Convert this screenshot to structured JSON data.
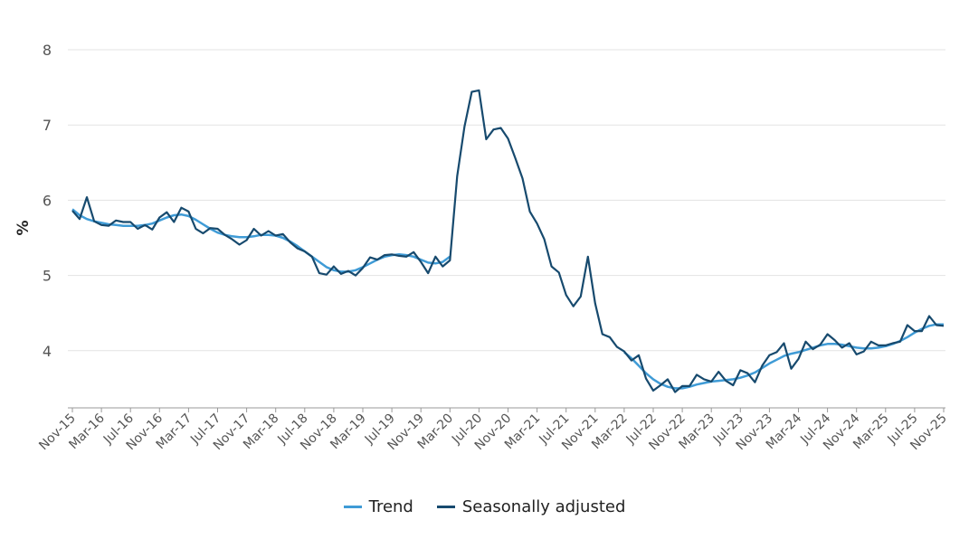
{
  "chart_data": {
    "type": "line",
    "title": "",
    "xlabel": "",
    "ylabel": "%",
    "x_frequency": "monthly",
    "x_start": "Nov-15",
    "x_end": "Nov-25",
    "x_tick_labels": [
      "Nov-15",
      "Mar-16",
      "Jul-16",
      "Nov-16",
      "Mar-17",
      "Jul-17",
      "Nov-17",
      "Mar-18",
      "Jul-18",
      "Nov-18",
      "Mar-19",
      "Jul-19",
      "Nov-19",
      "Mar-20",
      "Jul-20",
      "Nov-20",
      "Mar-21",
      "Jul-21",
      "Nov-21",
      "Mar-22",
      "Jul-22",
      "Nov-22",
      "Mar-23",
      "Jul-23",
      "Nov-23",
      "Mar-24",
      "Jul-24",
      "Nov-24",
      "Mar-25",
      "Jul-25",
      "Nov-25"
    ],
    "y_ticks": [
      4,
      5,
      6,
      7,
      8
    ],
    "ylim": [
      3.24,
      8
    ],
    "grid": "horizontal",
    "legend_position": "bottom",
    "series": [
      {
        "name": "Trend",
        "color": "#3f9bd6",
        "values": [
          5.88,
          5.8,
          5.75,
          5.72,
          5.7,
          5.68,
          5.67,
          5.66,
          5.66,
          5.66,
          5.67,
          5.69,
          5.73,
          5.77,
          5.8,
          5.81,
          5.79,
          5.74,
          5.68,
          5.62,
          5.57,
          5.54,
          5.52,
          5.51,
          5.51,
          5.52,
          5.54,
          5.54,
          5.53,
          5.5,
          5.45,
          5.39,
          5.32,
          5.25,
          5.18,
          5.11,
          5.07,
          5.05,
          5.05,
          5.07,
          5.11,
          5.16,
          5.21,
          5.25,
          5.27,
          5.28,
          5.27,
          5.25,
          5.21,
          5.17,
          5.16,
          5.18,
          5.25,
          null,
          null,
          null,
          null,
          null,
          null,
          null,
          null,
          null,
          null,
          null,
          null,
          null,
          null,
          null,
          null,
          null,
          null,
          null,
          null,
          null,
          null,
          null,
          3.98,
          3.9,
          3.8,
          3.7,
          3.62,
          3.56,
          3.52,
          3.5,
          3.5,
          3.52,
          3.55,
          3.57,
          3.59,
          3.6,
          3.61,
          3.62,
          3.64,
          3.67,
          3.71,
          3.77,
          3.83,
          3.88,
          3.93,
          3.96,
          3.98,
          4.01,
          4.04,
          4.07,
          4.09,
          4.09,
          4.08,
          4.06,
          4.04,
          4.03,
          4.03,
          4.04,
          4.06,
          4.09,
          4.13,
          4.18,
          4.24,
          4.29,
          4.33,
          4.35,
          4.35
        ]
      },
      {
        "name": "Seasonally adjusted",
        "color": "#174a6e",
        "values": [
          5.86,
          5.75,
          6.04,
          5.72,
          5.67,
          5.66,
          5.73,
          5.71,
          5.71,
          5.62,
          5.67,
          5.61,
          5.77,
          5.84,
          5.71,
          5.9,
          5.85,
          5.62,
          5.56,
          5.63,
          5.62,
          5.54,
          5.48,
          5.41,
          5.47,
          5.62,
          5.53,
          5.59,
          5.53,
          5.55,
          5.44,
          5.36,
          5.32,
          5.25,
          5.03,
          5.01,
          5.12,
          5.02,
          5.06,
          5.0,
          5.1,
          5.24,
          5.21,
          5.27,
          5.28,
          5.26,
          5.25,
          5.31,
          5.18,
          5.03,
          5.25,
          5.12,
          5.2,
          6.32,
          6.98,
          7.44,
          7.46,
          6.81,
          6.94,
          6.96,
          6.82,
          6.56,
          6.29,
          5.85,
          5.69,
          5.48,
          5.12,
          5.04,
          4.74,
          4.59,
          4.72,
          5.25,
          4.63,
          4.22,
          4.18,
          4.05,
          3.99,
          3.87,
          3.94,
          3.63,
          3.47,
          3.54,
          3.62,
          3.45,
          3.53,
          3.53,
          3.68,
          3.62,
          3.59,
          3.72,
          3.6,
          3.54,
          3.74,
          3.7,
          3.58,
          3.8,
          3.94,
          3.98,
          4.1,
          3.76,
          3.89,
          4.12,
          4.02,
          4.08,
          4.22,
          4.14,
          4.04,
          4.1,
          3.95,
          3.99,
          4.12,
          4.07,
          4.07,
          4.1,
          4.12,
          4.34,
          4.26,
          4.26,
          4.46,
          4.34,
          4.33
        ]
      }
    ]
  }
}
